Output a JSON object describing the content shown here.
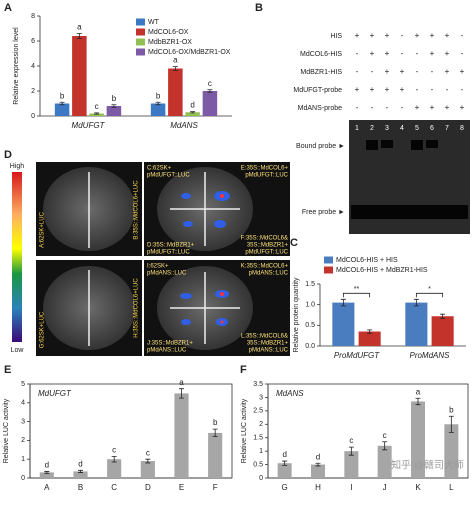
{
  "chart_data": [
    {
      "panel": "A",
      "type": "bar",
      "ylabel": "Relative expression level",
      "categories": [
        "MdUFGT",
        "MdANS"
      ],
      "category_style": "italic",
      "series": [
        {
          "name": "WT",
          "color": "#3d78c4",
          "values": [
            1,
            1
          ],
          "errors": [
            0.1,
            0.1
          ],
          "letters": [
            "b",
            "b"
          ]
        },
        {
          "name": "MdCOL6-OX",
          "color": "#c4322c",
          "values": [
            6.4,
            3.8
          ],
          "errors": [
            0.2,
            0.15
          ],
          "letters": [
            "a",
            "a"
          ]
        },
        {
          "name": "MdbBZR1-OX",
          "color": "#93c052",
          "values": [
            0.2,
            0.3
          ],
          "errors": [
            0.05,
            0.05
          ],
          "letters": [
            "c",
            "d"
          ]
        },
        {
          "name": "MdCOL6-OX/MdBZR1-OX",
          "color": "#7d5aa6",
          "values": [
            0.8,
            2.0
          ],
          "errors": [
            0.1,
            0.1
          ],
          "letters": [
            "b",
            "c"
          ]
        }
      ],
      "ylim": [
        0,
        8
      ],
      "yticks": [
        0,
        2,
        4,
        6,
        8
      ],
      "legend": "upper right"
    },
    {
      "panel": "C",
      "type": "bar",
      "ylabel": "Relative protein quantity",
      "categories": [
        "ProMdUFGT",
        "ProMdANS"
      ],
      "category_style": "italic",
      "series": [
        {
          "name": "MdCOL6-HIS + HIS",
          "color": "#4a7cc0",
          "values": [
            1.05,
            1.05
          ],
          "errors": [
            0.08,
            0.08
          ]
        },
        {
          "name": "MdCOL6-HIS + MdBZR1-HIS",
          "color": "#c4322c",
          "values": [
            0.35,
            0.72
          ],
          "errors": [
            0.04,
            0.05
          ]
        }
      ],
      "significance": [
        "**",
        "*"
      ],
      "ylim": [
        0,
        1.5
      ],
      "yticks": [
        {
          "value": 0,
          "label": "0.0"
        },
        {
          "value": 0.5,
          "label": "0.5"
        },
        {
          "value": 1,
          "label": "1.0"
        },
        {
          "value": 1.5,
          "label": "1.5"
        }
      ],
      "legend": "top"
    },
    {
      "panel": "E",
      "type": "bar",
      "subtitle": "MdUFGT",
      "ylabel": "Relative LUC activity",
      "categories": [
        "A",
        "B",
        "C",
        "D",
        "E",
        "F"
      ],
      "color": "#a6a6a6",
      "values": [
        0.3,
        0.35,
        1.0,
        0.9,
        4.5,
        2.4
      ],
      "errors": [
        0.05,
        0.06,
        0.15,
        0.1,
        0.25,
        0.2
      ],
      "letters": [
        "d",
        "d",
        "c",
        "c",
        "a",
        "b"
      ],
      "ylim": [
        0,
        5
      ],
      "yticks": [
        0,
        1,
        2,
        3,
        4,
        5
      ],
      "frame": true
    },
    {
      "panel": "F",
      "type": "bar",
      "subtitle": "MdANS",
      "ylabel": "Relative LUC activity",
      "categories": [
        "G",
        "H",
        "I",
        "J",
        "K",
        "L"
      ],
      "color": "#a6a6a6",
      "values": [
        0.55,
        0.5,
        1.0,
        1.2,
        2.85,
        2.0
      ],
      "errors": [
        0.08,
        0.05,
        0.15,
        0.15,
        0.12,
        0.3
      ],
      "letters": [
        "d",
        "d",
        "c",
        "c",
        "a",
        "b"
      ],
      "ylim": [
        0,
        3.5
      ],
      "yticks": [
        0,
        0.5,
        1,
        1.5,
        2,
        2.5,
        3,
        3.5
      ],
      "frame": true,
      "watermark": "知乎 @赣司大师"
    }
  ],
  "gel": {
    "panel": "B",
    "rows": [
      {
        "label": "HIS",
        "signs": [
          "+",
          "+",
          "+",
          "-",
          "+",
          "+",
          "+",
          "-"
        ]
      },
      {
        "label": "MdCOL6-HIS",
        "signs": [
          "-",
          "+",
          "+",
          "-",
          "-",
          "+",
          "+",
          "-"
        ]
      },
      {
        "label": "MdBZR1-HIS",
        "signs": [
          "-",
          "-",
          "+",
          "+",
          "-",
          "-",
          "+",
          "+"
        ]
      },
      {
        "label": "MdUFGT-probe",
        "signs": [
          "+",
          "+",
          "+",
          "+",
          "-",
          "-",
          "-",
          "-"
        ]
      },
      {
        "label": "MdANS-probe",
        "signs": [
          "-",
          "-",
          "-",
          "-",
          "+",
          "+",
          "+",
          "+"
        ]
      }
    ],
    "lanes": [
      "1",
      "2",
      "3",
      "4",
      "5",
      "6",
      "7",
      "8"
    ],
    "bound": "Bound probe ►",
    "free": "Free probe ►"
  },
  "luc": {
    "panel": "D",
    "high": "High",
    "low": "Low",
    "left": [
      "A:62SK+LUC",
      "B:35S::MdCOL6+LUC",
      "G:62SK+LUC",
      "H:35S::MdCOL6+LUC"
    ],
    "right": [
      [
        [
          "C:62SK+",
          "pMdUFGT::LUC"
        ],
        [
          "E:35S::MdCOL6+",
          "pMdUFGT::LUC"
        ],
        [
          "D:35S::MdBZR1+",
          "pMdUFGT::LUC"
        ],
        [
          "F:35S::MdCOL6&",
          "35S::MdBZR1+",
          "pMdUFGT::LUC"
        ]
      ],
      [
        [
          "I:62SK+",
          "pMdANS::LUC"
        ],
        [
          "K:35S::MdCOL6+",
          "pMdANS::LUC"
        ],
        [
          "J:35S::MdBZR1+",
          "pMdANS::LUC"
        ],
        [
          "L:35S::MdCOL6&",
          "35S::MdBZR1+",
          "pMdANS::LUC"
        ]
      ]
    ]
  }
}
